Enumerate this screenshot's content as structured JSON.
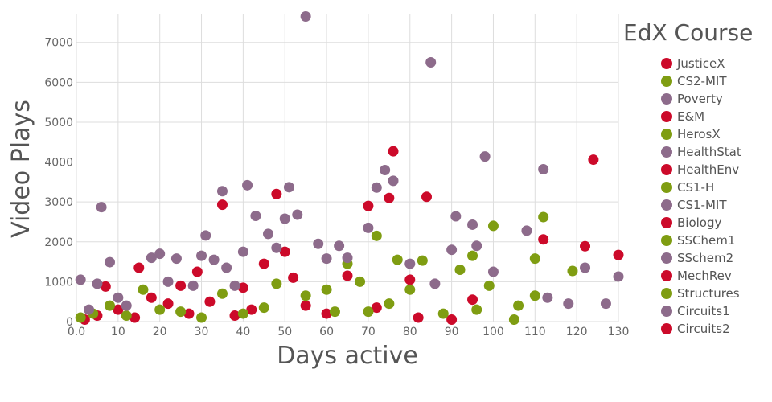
{
  "chart_data": {
    "type": "scatter",
    "xlabel": "Days active",
    "ylabel": "Video Plays",
    "xlim": [
      0,
      130
    ],
    "ylim": [
      0,
      7700
    ],
    "x_ticks": [
      "0.0",
      "10",
      "20",
      "30",
      "40",
      "50",
      "60",
      "70",
      "80",
      "90",
      "100",
      "110",
      "120",
      "130"
    ],
    "x_tick_values": [
      0,
      10,
      20,
      30,
      40,
      50,
      60,
      70,
      80,
      90,
      100,
      110,
      120,
      130
    ],
    "y_ticks": [
      "0",
      "1000",
      "2000",
      "3000",
      "4000",
      "5000",
      "6000",
      "7000"
    ],
    "y_tick_values": [
      0,
      1000,
      2000,
      3000,
      4000,
      5000,
      6000,
      7000
    ],
    "grid": true,
    "legend_title": "EdX Course",
    "legend_position": "right",
    "colors": {
      "red": "#cc0a2a",
      "green": "#7f9d12",
      "purple": "#8d6b8b"
    },
    "series": [
      {
        "name": "JusticeX",
        "color": "red",
        "points": [
          [
            2,
            50
          ],
          [
            5,
            150
          ],
          [
            7,
            880
          ],
          [
            10,
            300
          ],
          [
            14,
            100
          ],
          [
            15,
            1350
          ],
          [
            18,
            600
          ],
          [
            22,
            450
          ],
          [
            25,
            900
          ],
          [
            27,
            200
          ],
          [
            29,
            1250
          ],
          [
            32,
            500
          ],
          [
            35,
            2930
          ],
          [
            38,
            150
          ],
          [
            40,
            850
          ],
          [
            42,
            300
          ],
          [
            45,
            1450
          ],
          [
            48,
            3200
          ],
          [
            50,
            1750
          ],
          [
            52,
            1100
          ],
          [
            55,
            400
          ],
          [
            60,
            200
          ],
          [
            65,
            1150
          ],
          [
            70,
            2900
          ],
          [
            72,
            350
          ],
          [
            75,
            3100
          ],
          [
            76,
            4270
          ],
          [
            80,
            1050
          ],
          [
            82,
            100
          ],
          [
            84,
            3130
          ],
          [
            90,
            50
          ],
          [
            95,
            550
          ],
          [
            112,
            2060
          ],
          [
            122,
            1890
          ],
          [
            124,
            4060
          ],
          [
            130,
            1670
          ]
        ]
      },
      {
        "name": "CS2-MIT",
        "color": "green",
        "points": [
          [
            1,
            100
          ],
          [
            4,
            200
          ],
          [
            8,
            400
          ],
          [
            12,
            150
          ],
          [
            16,
            800
          ],
          [
            20,
            300
          ],
          [
            25,
            250
          ],
          [
            30,
            100
          ],
          [
            35,
            700
          ],
          [
            40,
            200
          ],
          [
            45,
            350
          ],
          [
            48,
            950
          ],
          [
            55,
            650
          ],
          [
            60,
            800
          ],
          [
            62,
            250
          ],
          [
            65,
            1450
          ],
          [
            68,
            1000
          ],
          [
            70,
            250
          ],
          [
            72,
            2150
          ],
          [
            75,
            450
          ],
          [
            77,
            1550
          ],
          [
            80,
            800
          ],
          [
            83,
            1530
          ],
          [
            88,
            200
          ],
          [
            92,
            1300
          ],
          [
            95,
            1650
          ],
          [
            96,
            300
          ],
          [
            99,
            900
          ],
          [
            100,
            2400
          ],
          [
            105,
            50
          ],
          [
            106,
            400
          ],
          [
            110,
            1580
          ],
          [
            110,
            650
          ],
          [
            112,
            2620
          ],
          [
            119,
            1270
          ]
        ]
      },
      {
        "name": "Poverty",
        "color": "purple",
        "points": [
          [
            1,
            1050
          ],
          [
            3,
            300
          ],
          [
            5,
            950
          ],
          [
            6,
            2870
          ],
          [
            8,
            1490
          ],
          [
            10,
            600
          ],
          [
            12,
            400
          ],
          [
            18,
            1600
          ],
          [
            20,
            1700
          ],
          [
            22,
            1000
          ],
          [
            24,
            1580
          ],
          [
            28,
            900
          ],
          [
            30,
            1650
          ],
          [
            31,
            2160
          ],
          [
            33,
            1550
          ],
          [
            35,
            3270
          ],
          [
            36,
            1350
          ],
          [
            38,
            900
          ],
          [
            40,
            1750
          ],
          [
            41,
            3420
          ],
          [
            43,
            2650
          ],
          [
            46,
            2200
          ],
          [
            48,
            1850
          ],
          [
            50,
            2580
          ],
          [
            51,
            3370
          ],
          [
            53,
            2680
          ],
          [
            55,
            7650
          ],
          [
            58,
            1950
          ],
          [
            60,
            1580
          ],
          [
            63,
            1900
          ],
          [
            65,
            1600
          ],
          [
            70,
            2350
          ],
          [
            72,
            3360
          ],
          [
            74,
            3800
          ],
          [
            76,
            3530
          ],
          [
            80,
            1450
          ],
          [
            85,
            6500
          ],
          [
            86,
            950
          ],
          [
            90,
            1800
          ],
          [
            91,
            2640
          ],
          [
            95,
            2430
          ],
          [
            96,
            1900
          ],
          [
            98,
            4140
          ],
          [
            100,
            1250
          ],
          [
            108,
            2280
          ],
          [
            112,
            3820
          ],
          [
            113,
            600
          ],
          [
            118,
            450
          ],
          [
            122,
            1350
          ],
          [
            127,
            450
          ],
          [
            130,
            1130
          ]
        ]
      }
    ]
  }
}
